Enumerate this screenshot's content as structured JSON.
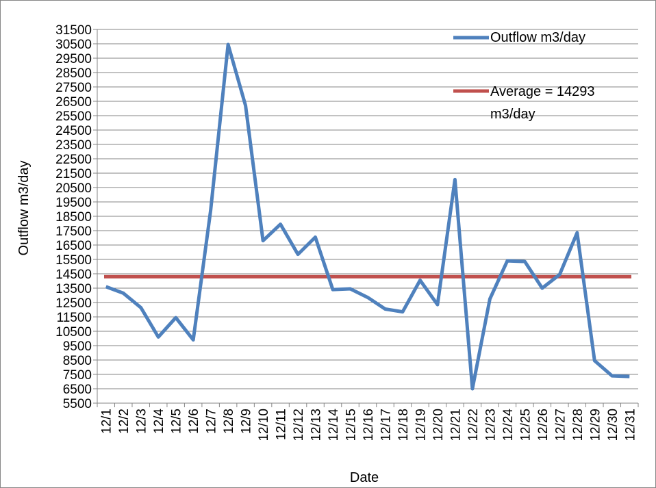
{
  "chart_data": {
    "type": "line",
    "xlabel": "Date",
    "ylabel": "Outflow m3/day",
    "ylim": [
      5500,
      31500
    ],
    "ytick_step": 1000,
    "grid": true,
    "legend_position": "top-right",
    "categories": [
      "12/1",
      "12/2",
      "12/3",
      "12/4",
      "12/5",
      "12/6",
      "12/7",
      "12/8",
      "12/9",
      "12/10",
      "12/11",
      "12/12",
      "12/13",
      "12/14",
      "12/15",
      "12/16",
      "12/17",
      "12/18",
      "12/19",
      "12/20",
      "12/21",
      "12/22",
      "12/23",
      "12/24",
      "12/25",
      "12/26",
      "12/27",
      "12/28",
      "12/29",
      "12/30",
      "12/31"
    ],
    "series": [
      {
        "name": "Outflow m3/day",
        "color": "#4f81bd",
        "values": [
          13600,
          13150,
          12150,
          10100,
          11450,
          9900,
          18900,
          30450,
          26200,
          16800,
          17950,
          15850,
          17050,
          13400,
          13450,
          12850,
          12050,
          11850,
          14050,
          12350,
          21050,
          6500,
          12750,
          15400,
          15350,
          13500,
          14450,
          17350,
          8450,
          7400,
          7350
        ]
      },
      {
        "name": "Average = 14293 m3/day",
        "color": "#c0504d",
        "values": [
          14293,
          14293,
          14293,
          14293,
          14293,
          14293,
          14293,
          14293,
          14293,
          14293,
          14293,
          14293,
          14293,
          14293,
          14293,
          14293,
          14293,
          14293,
          14293,
          14293,
          14293,
          14293,
          14293,
          14293,
          14293,
          14293,
          14293,
          14293,
          14293,
          14293,
          14293
        ]
      }
    ],
    "legend": {
      "line1": "Outflow m3/day",
      "line2a": "Average = 14293",
      "line2b": "m3/day"
    }
  }
}
